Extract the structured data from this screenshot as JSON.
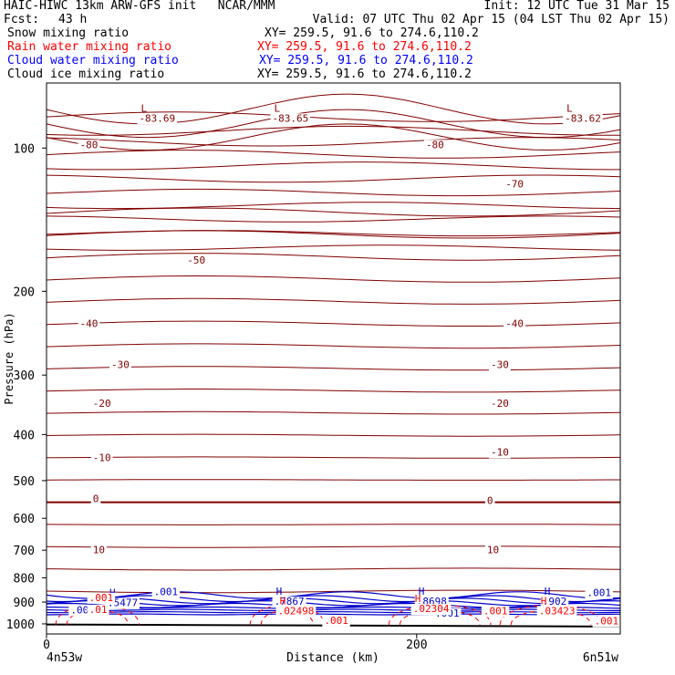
{
  "header": {
    "title": "HAIC-HIWC 13km ARW-GFS init   NCAR/MMM",
    "init": "Init: 12 UTC Tue 31 Mar 15",
    "fcst_label": "Fcst:",
    "fcst_value": "43 h",
    "valid": "Valid: 07 UTC Thu 02 Apr 15 (04 LST Thu 02 Apr 15)"
  },
  "legend": [
    {
      "label": "Snow mixing ratio",
      "xy": "XY= 259.5, 91.6 to 274.6,110.2",
      "color": "#000000"
    },
    {
      "label": "Rain water mixing ratio",
      "xy": "XY= 259.5, 91.6 to 274.6,110.2",
      "color": "#ff0000"
    },
    {
      "label": "Cloud water mixing ratio",
      "xy": "XY= 259.5, 91.6 to 274.6,110.2",
      "color": "#0000ff"
    },
    {
      "label": "Cloud ice mixing ratio",
      "xy": "XY= 259.5, 91.6 to 274.6,110.2",
      "color": "#000000"
    }
  ],
  "colors": {
    "temperature": "#800000",
    "rain": "#ff0000",
    "cloud": "#0000cc",
    "axis": "#000000"
  },
  "chart_data": {
    "type": "cross-section contour",
    "xlabel": "Distance (km)",
    "ylabel": "Pressure (hPa)",
    "xlim": [
      0,
      310
    ],
    "ylim": [
      1050,
      73
    ],
    "y_scale": "log",
    "x_ticks": [
      0,
      200
    ],
    "y_ticks": [
      100,
      200,
      300,
      400,
      500,
      600,
      700,
      800,
      900,
      1000
    ],
    "x_endpoints": [
      "4n53w",
      "6n51w"
    ],
    "temperature_labels": [
      {
        "text": "-80",
        "x": 18,
        "p": 100
      },
      {
        "text": "-80",
        "x": 205,
        "p": 100
      },
      {
        "text": "-70",
        "x": 248,
        "p": 121
      },
      {
        "text": "-50",
        "x": 76,
        "p": 175
      },
      {
        "text": "-40",
        "x": 18,
        "p": 238
      },
      {
        "text": "-40",
        "x": 248,
        "p": 238
      },
      {
        "text": "-30",
        "x": 35,
        "p": 290
      },
      {
        "text": "-30",
        "x": 240,
        "p": 290
      },
      {
        "text": "-20",
        "x": 25,
        "p": 350
      },
      {
        "text": "-20",
        "x": 240,
        "p": 350
      },
      {
        "text": "-10",
        "x": 25,
        "p": 455
      },
      {
        "text": "-10",
        "x": 240,
        "p": 443
      },
      {
        "text": "0",
        "x": 25,
        "p": 555
      },
      {
        "text": "0",
        "x": 238,
        "p": 560
      },
      {
        "text": "10",
        "x": 25,
        "p": 710
      },
      {
        "text": "10",
        "x": 238,
        "p": 710
      }
    ],
    "min_labels": [
      {
        "text": "-83.69",
        "x": 50,
        "p": 88
      },
      {
        "text": "-83.65",
        "x": 122,
        "p": 88
      },
      {
        "text": "-83.62",
        "x": 280,
        "p": 88
      }
    ],
    "cloud_maxima": [
      {
        "text": ".5477",
        "x": 33,
        "p": 918
      },
      {
        "text": ".7867",
        "x": 123,
        "p": 912
      },
      {
        "text": ".8698",
        "x": 200,
        "p": 912
      },
      {
        "text": ".902",
        "x": 268,
        "p": 912
      }
    ],
    "cloud_labels": [
      {
        "text": ".001",
        "x": 58,
        "p": 870
      },
      {
        "text": ".001",
        "x": 13,
        "p": 950
      },
      {
        "text": ".001",
        "x": 210,
        "p": 965
      },
      {
        "text": ".001",
        "x": 292,
        "p": 875
      }
    ],
    "rain_maxima": [
      {
        "text": ".02498",
        "x": 125,
        "p": 955
      },
      {
        "text": ".02304",
        "x": 198,
        "p": 945
      },
      {
        "text": ".03423",
        "x": 266,
        "p": 955
      }
    ],
    "rain_labels": [
      {
        "text": ".001",
        "x": 23,
        "p": 895
      },
      {
        "text": ".01",
        "x": 23,
        "p": 948
      },
      {
        "text": ".001",
        "x": 150,
        "p": 1000
      },
      {
        "text": ".001",
        "x": 236,
        "p": 955
      },
      {
        "text": ".001",
        "x": 296,
        "p": 1003
      }
    ]
  }
}
